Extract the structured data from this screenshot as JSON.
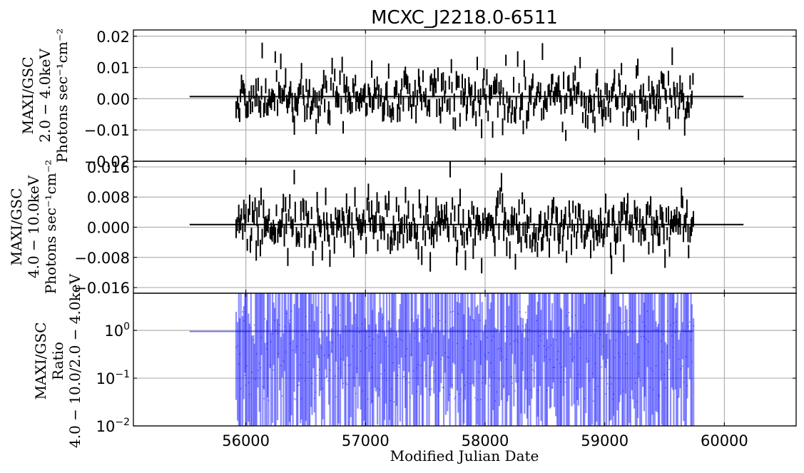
{
  "chart_data": [
    {
      "type": "errorbar",
      "title": "MCXC_J2218.0-6511",
      "ylabel_lines": [
        "MAXI/GSC",
        "2.0 − 4.0keV",
        "Photons sec⁻¹cm⁻²"
      ],
      "ylim": [
        -0.02,
        0.022
      ],
      "yticks": [
        0.02,
        0.01,
        0.0,
        -0.01,
        -0.02
      ],
      "ytick_labels": [
        "0.02",
        "0.01",
        "0.00",
        "−0.01",
        "−0.02"
      ],
      "xlim": [
        55060,
        60600
      ],
      "grid": true,
      "color": "#000000",
      "mean_line": {
        "x": [
          55530,
          60160
        ],
        "y": 0.0007
      },
      "series": {
        "x_start": 55920,
        "x_end": 59740,
        "n": 420,
        "center": 0.0005,
        "spread": 0.0042,
        "err": 0.0024,
        "seed": 11,
        "min": -0.017,
        "max": 0.018
      }
    },
    {
      "type": "errorbar",
      "ylabel_lines": [
        "MAXI/GSC",
        "4.0 − 10.0keV",
        "Photons sec⁻¹cm⁻²"
      ],
      "ylim": [
        -0.0175,
        0.0175
      ],
      "yticks": [
        0.016,
        0.008,
        0.0,
        -0.008,
        -0.016
      ],
      "ytick_labels": [
        "0.016",
        "0.008",
        "0.000",
        "−0.008",
        "−0.016"
      ],
      "xlim": [
        55060,
        60600
      ],
      "grid": true,
      "color": "#000000",
      "mean_line": {
        "x": [
          55530,
          60160
        ],
        "y": 0.0007
      },
      "series": {
        "x_start": 55920,
        "x_end": 59740,
        "n": 420,
        "center": 0.0003,
        "spread": 0.0035,
        "err": 0.0022,
        "seed": 29,
        "min": -0.016,
        "max": 0.0155
      }
    },
    {
      "type": "errorbar",
      "ylabel_lines": [
        "MAXI/GSC",
        "Ratio",
        "4.0 − 10.0/2.0 − 4.0keV"
      ],
      "yscale": "log",
      "ylim": [
        0.01,
        6.0
      ],
      "yticks": [
        1.0,
        0.1,
        0.01
      ],
      "ytick_labels": [
        {
          "base": "10",
          "exp": "0"
        },
        {
          "base": "10",
          "exp": "−1"
        },
        {
          "base": "10",
          "exp": "−2"
        }
      ],
      "xlim": [
        55060,
        60600
      ],
      "xticks": [
        56000,
        57000,
        58000,
        59000,
        60000
      ],
      "xtick_labels": [
        "56000",
        "57000",
        "58000",
        "59000",
        "60000"
      ],
      "xlabel": "Modified Julian Date",
      "grid": true,
      "color": "#0000ff",
      "mean_line": {
        "x": [
          55530,
          59740
        ],
        "y": 0.95
      },
      "series": {
        "x_start": 55920,
        "x_end": 59740,
        "n": 380,
        "seed": 47
      }
    }
  ]
}
